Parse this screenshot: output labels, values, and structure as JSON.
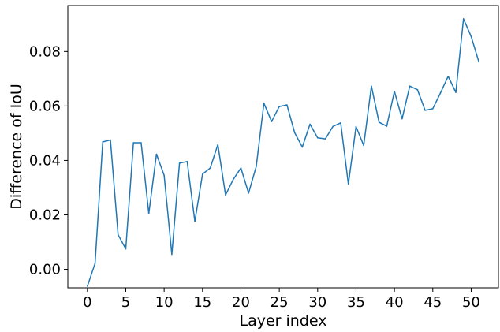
{
  "chart_data": {
    "type": "line",
    "title": "",
    "xlabel": "Layer index",
    "ylabel": "Difference of IoU",
    "xlim": [
      -2.55,
      53.55
    ],
    "ylim": [
      -0.0068,
      0.0969
    ],
    "xticks": [
      0,
      5,
      10,
      15,
      20,
      25,
      30,
      35,
      40,
      45,
      50
    ],
    "xtick_labels": [
      "0",
      "5",
      "10",
      "15",
      "20",
      "25",
      "30",
      "35",
      "40",
      "45",
      "50"
    ],
    "yticks": [
      0.0,
      0.02,
      0.04,
      0.06,
      0.08
    ],
    "ytick_labels": [
      "0.00",
      "0.02",
      "0.04",
      "0.06",
      "0.08"
    ],
    "grid": false,
    "legend": null,
    "series": [
      {
        "color": "#1f77b4",
        "x": [
          0,
          1,
          2,
          3,
          4,
          5,
          6,
          7,
          8,
          9,
          10,
          11,
          12,
          13,
          14,
          15,
          16,
          17,
          18,
          19,
          20,
          21,
          22,
          23,
          24,
          25,
          26,
          27,
          28,
          29,
          30,
          31,
          32,
          33,
          34,
          35,
          36,
          37,
          38,
          39,
          40,
          41,
          42,
          43,
          44,
          45,
          46,
          47,
          48,
          49,
          50,
          51
        ],
        "values": [
          -0.0062,
          0.0022,
          0.0468,
          0.0475,
          0.0127,
          0.0075,
          0.0465,
          0.0465,
          0.0205,
          0.0423,
          0.0345,
          0.0055,
          0.039,
          0.0396,
          0.0176,
          0.035,
          0.0372,
          0.0458,
          0.0273,
          0.033,
          0.0372,
          0.028,
          0.0378,
          0.061,
          0.0543,
          0.0598,
          0.0604,
          0.0502,
          0.0449,
          0.0533,
          0.0483,
          0.0479,
          0.0525,
          0.0538,
          0.0313,
          0.0524,
          0.0455,
          0.0673,
          0.054,
          0.0526,
          0.0654,
          0.0553,
          0.0673,
          0.066,
          0.0584,
          0.059,
          0.0648,
          0.0709,
          0.065,
          0.092,
          0.0855,
          0.0762
        ]
      }
    ]
  }
}
